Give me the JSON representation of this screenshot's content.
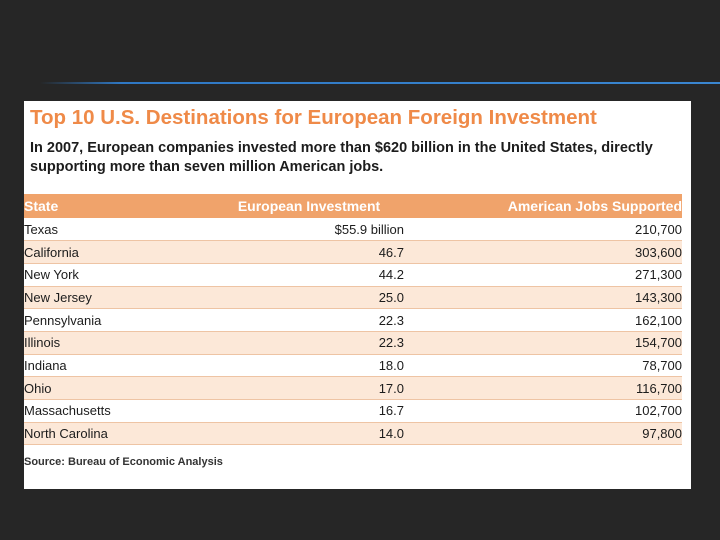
{
  "document": {
    "title": "Top 10 U.S. Destinations for European Foreign Investment",
    "subtitle": "In 2007, European companies invested more than $620 billion in the United States, directly supporting more than seven million American jobs.",
    "source": "Source: Bureau of Economic Analysis"
  },
  "table": {
    "headers": [
      "State",
      "European Investment",
      "American Jobs Supported"
    ],
    "rows": [
      [
        "Texas",
        "$55.9 billion",
        "210,700"
      ],
      [
        "California",
        "46.7",
        "303,600"
      ],
      [
        "New York",
        "44.2",
        "271,300"
      ],
      [
        "New Jersey",
        "25.0",
        "143,300"
      ],
      [
        "Pennsylvania",
        "22.3",
        "162,100"
      ],
      [
        "Illinois",
        "22.3",
        "154,700"
      ],
      [
        "Indiana",
        "18.0",
        "78,700"
      ],
      [
        "Ohio",
        "17.0",
        "116,700"
      ],
      [
        "Massachusetts",
        "16.7",
        "102,700"
      ],
      [
        "North Carolina",
        "14.0",
        "97,800"
      ]
    ]
  },
  "colors": {
    "slide_background": "#262626",
    "accent_line": "#2f78c4",
    "title": "#ef8a48",
    "header_row": "#f0a36b",
    "alt_row": "#fce8d8"
  }
}
